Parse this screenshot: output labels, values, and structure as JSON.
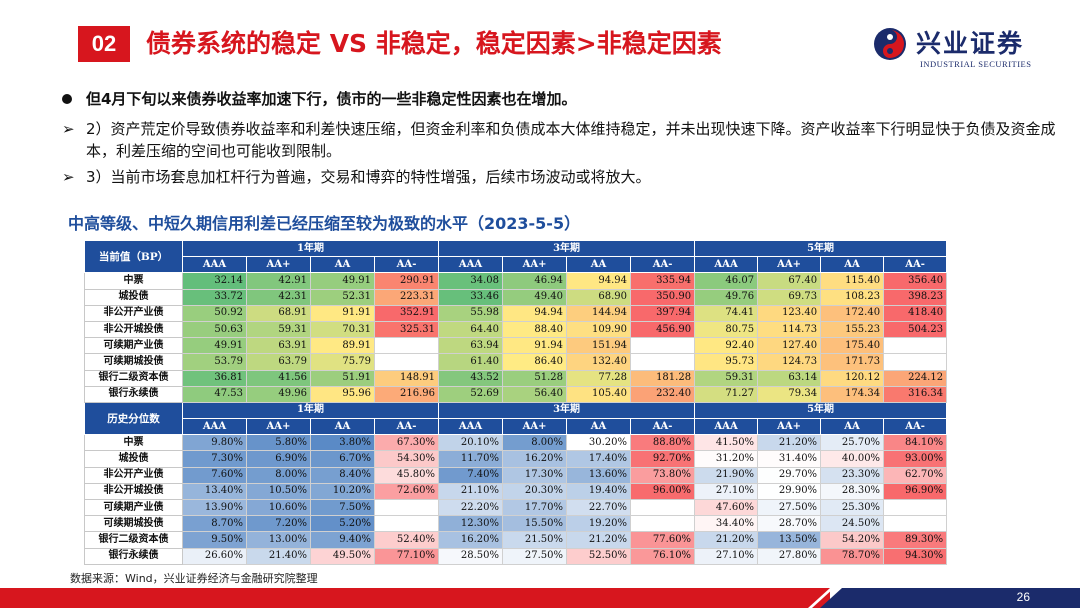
{
  "header": {
    "badge": "02",
    "title": "债券系统的稳定 VS 非稳定，稳定因素>非稳定因素",
    "logo_cn": "兴业证券",
    "logo_en": "INDUSTRIAL SECURITIES"
  },
  "bullets": [
    {
      "marker": "●",
      "text": "但4月下旬以来债券收益率加速下行，债市的一些非稳定性因素也在增加。",
      "style": "main"
    },
    {
      "marker": "➢",
      "text": "2）资产荒定价导致债券收益率和利差快速压缩，但资金利率和负债成本大体维持稳定，并未出现快速下降。资产收益率下行明显快于负债及资金成本，利差压缩的空间也可能收到限制。",
      "style": "sub"
    },
    {
      "marker": "➢",
      "text": "3）当前市场套息加杠杆行为普遍，交易和博弈的特性增强，后续市场波动或将放大。",
      "style": "sub"
    }
  ],
  "subtitle": "中高等级、中短久期信用利差已经压缩至较为极致的水平（2023-5-5）",
  "table": {
    "terms": [
      "1年期",
      "3年期",
      "5年期"
    ],
    "ratings": [
      "AAA",
      "AA+",
      "AA",
      "AA-"
    ],
    "sections": [
      {
        "label": "当前值（BP）",
        "rows": [
          {
            "name": "中票",
            "values": [
              "32.14",
              "42.91",
              "49.91",
              "290.91",
              "34.08",
              "46.94",
              "94.94",
              "335.94",
              "46.07",
              "67.40",
              "115.40",
              "356.40"
            ]
          },
          {
            "name": "城投债",
            "values": [
              "33.72",
              "42.31",
              "52.31",
              "223.31",
              "33.46",
              "49.40",
              "68.90",
              "350.90",
              "49.76",
              "69.73",
              "108.23",
              "398.23"
            ]
          },
          {
            "name": "非公开产业债",
            "values": [
              "50.92",
              "68.91",
              "91.91",
              "352.91",
              "55.98",
              "94.94",
              "144.94",
              "397.94",
              "74.41",
              "123.40",
              "172.40",
              "418.40"
            ]
          },
          {
            "name": "非公开城投债",
            "values": [
              "50.63",
              "59.31",
              "70.31",
              "325.31",
              "64.40",
              "88.40",
              "109.90",
              "456.90",
              "80.75",
              "114.73",
              "155.23",
              "504.23"
            ]
          },
          {
            "name": "可续期产业债",
            "values": [
              "49.91",
              "63.91",
              "89.91",
              "",
              "63.94",
              "91.94",
              "151.94",
              "",
              "92.40",
              "127.40",
              "175.40",
              ""
            ]
          },
          {
            "name": "可续期城投债",
            "values": [
              "53.79",
              "63.79",
              "75.79",
              "",
              "61.40",
              "86.40",
              "132.40",
              "",
              "95.73",
              "124.73",
              "171.73",
              ""
            ]
          },
          {
            "name": "银行二级资本债",
            "values": [
              "36.81",
              "41.56",
              "51.91",
              "148.91",
              "43.52",
              "51.28",
              "77.28",
              "181.28",
              "59.31",
              "63.14",
              "120.12",
              "224.12"
            ]
          },
          {
            "name": "银行永续债",
            "values": [
              "47.53",
              "49.96",
              "95.96",
              "216.96",
              "52.69",
              "56.40",
              "105.40",
              "232.40",
              "71.27",
              "79.34",
              "174.34",
              "316.34"
            ]
          }
        ]
      },
      {
        "label": "历史分位数",
        "rows": [
          {
            "name": "中票",
            "values": [
              "9.80%",
              "5.80%",
              "3.80%",
              "67.30%",
              "20.10%",
              "8.00%",
              "30.20%",
              "88.80%",
              "41.50%",
              "21.20%",
              "25.70%",
              "84.10%"
            ]
          },
          {
            "name": "城投债",
            "values": [
              "7.30%",
              "6.90%",
              "6.70%",
              "54.30%",
              "11.70%",
              "16.20%",
              "17.40%",
              "92.70%",
              "31.20%",
              "31.40%",
              "40.00%",
              "93.00%"
            ]
          },
          {
            "name": "非公开产业债",
            "values": [
              "7.60%",
              "8.00%",
              "8.40%",
              "45.80%",
              "7.40%",
              "17.30%",
              "13.60%",
              "73.80%",
              "21.90%",
              "29.70%",
              "23.30%",
              "62.70%"
            ]
          },
          {
            "name": "非公开城投债",
            "values": [
              "13.40%",
              "10.50%",
              "10.20%",
              "72.60%",
              "21.10%",
              "20.30%",
              "19.40%",
              "96.00%",
              "27.10%",
              "29.90%",
              "28.30%",
              "96.90%"
            ]
          },
          {
            "name": "可续期产业债",
            "values": [
              "13.90%",
              "10.60%",
              "7.50%",
              "",
              "22.20%",
              "17.70%",
              "22.70%",
              "",
              "47.60%",
              "27.50%",
              "25.30%",
              ""
            ]
          },
          {
            "name": "可续期城投债",
            "values": [
              "8.70%",
              "7.20%",
              "5.20%",
              "",
              "12.30%",
              "15.50%",
              "19.20%",
              "",
              "34.40%",
              "28.70%",
              "24.50%",
              ""
            ]
          },
          {
            "name": "银行二级资本债",
            "values": [
              "9.50%",
              "13.00%",
              "9.40%",
              "52.40%",
              "16.20%",
              "21.50%",
              "21.20%",
              "77.60%",
              "21.20%",
              "13.50%",
              "54.20%",
              "89.30%"
            ]
          },
          {
            "name": "银行永续债",
            "values": [
              "26.60%",
              "21.40%",
              "49.50%",
              "77.10%",
              "28.50%",
              "27.50%",
              "52.50%",
              "76.10%",
              "27.10%",
              "27.80%",
              "78.70%",
              "94.30%"
            ]
          }
        ]
      }
    ]
  },
  "source": "数据来源：Wind，兴业证券经济与金融研究院整理",
  "page_number": "26",
  "colors": {
    "accent_red": "#d7161e",
    "navy": "#1b2b6b",
    "table_header": "#1f4e9c",
    "scale_low": "#63be7b",
    "scale_mid": "#ffeb84",
    "scale_high": "#f8696b",
    "pct_low": "#5a8ac6",
    "pct_high": "#f8696b"
  }
}
